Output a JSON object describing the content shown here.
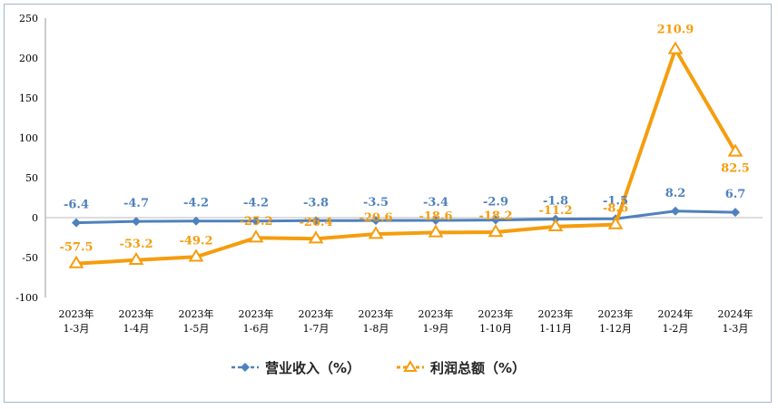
{
  "chart_data": {
    "type": "line",
    "categories": [
      [
        "2023年",
        "1-3月"
      ],
      [
        "2023年",
        "1-4月"
      ],
      [
        "2023年",
        "1-5月"
      ],
      [
        "2023年",
        "1-6月"
      ],
      [
        "2023年",
        "1-7月"
      ],
      [
        "2023年",
        "1-8月"
      ],
      [
        "2023年",
        "1-9月"
      ],
      [
        "2023年",
        "1-10月"
      ],
      [
        "2023年",
        "1-11月"
      ],
      [
        "2023年",
        "1-12月"
      ],
      [
        "2024年",
        "1-2月"
      ],
      [
        "2024年",
        "1-3月"
      ]
    ],
    "ylim": [
      -100,
      250
    ],
    "yticks": [
      -100,
      -50,
      0,
      50,
      100,
      150,
      200,
      250
    ],
    "legend_position": "bottom",
    "grid": false,
    "series": [
      {
        "name": "营业收入（%）",
        "color": "#4f81bd",
        "marker": "diamond",
        "values": [
          -6.4,
          -4.7,
          -4.2,
          -4.2,
          -3.8,
          -3.5,
          -3.4,
          -2.9,
          -1.8,
          -1.5,
          8.2,
          6.7
        ],
        "labels": [
          "-6.4",
          "-4.7",
          "-4.2",
          "-4.2",
          "-3.8",
          "-3.5",
          "-3.4",
          "-2.9",
          "-1.8",
          "-1.5",
          "8.2",
          "6.7"
        ]
      },
      {
        "name": "利润总额（%）",
        "color": "#f59d0e",
        "marker": "triangle",
        "values": [
          -57.5,
          -53.2,
          -49.2,
          -25.2,
          -26.4,
          -20.6,
          -18.6,
          -18.2,
          -11.2,
          -8.6,
          210.9,
          82.5
        ],
        "labels": [
          "-57.5",
          "-53.2",
          "-49.2",
          "-25.2",
          "-26.4",
          "-20.6",
          "-18.6",
          "-18.2",
          "-11.2",
          "-8.6",
          "210.9",
          "82.5"
        ]
      }
    ]
  }
}
